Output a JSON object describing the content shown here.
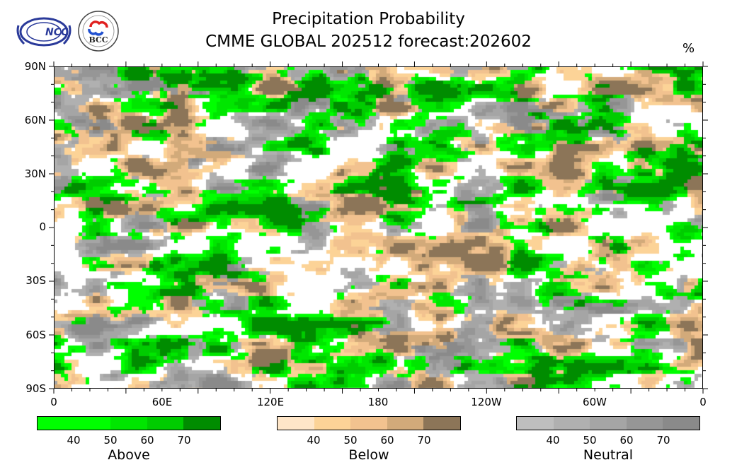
{
  "title": {
    "line1": "Precipitation Probability",
    "line2": "CMME GLOBAL 202512 forecast:202602",
    "unit": "%"
  },
  "logos": [
    {
      "name": "NCC",
      "text": "NCC"
    },
    {
      "name": "BCC",
      "text": "BCC"
    }
  ],
  "axes": {
    "lat_labels": [
      "90N",
      "60N",
      "30N",
      "0",
      "30S",
      "60S",
      "90S"
    ],
    "lon_labels": [
      "0",
      "60E",
      "120E",
      "180",
      "120W",
      "60W",
      "0"
    ]
  },
  "legends": [
    {
      "label": "Above",
      "ticks": [
        "40",
        "50",
        "60",
        "70"
      ],
      "colors": [
        "#00ff00",
        "#00ff00",
        "#00e600",
        "#00cc00",
        "#008c00"
      ]
    },
    {
      "label": "Below",
      "ticks": [
        "40",
        "50",
        "60",
        "70"
      ],
      "colors": [
        "#ffe6c8",
        "#fcd397",
        "#f2c28f",
        "#d2aa7a",
        "#8c7558"
      ]
    },
    {
      "label": "Neutral",
      "ticks": [
        "40",
        "50",
        "60",
        "70"
      ],
      "colors": [
        "#bebebe",
        "#b0b0b0",
        "#a5a5a5",
        "#969696",
        "#8a8a8a"
      ]
    }
  ]
}
